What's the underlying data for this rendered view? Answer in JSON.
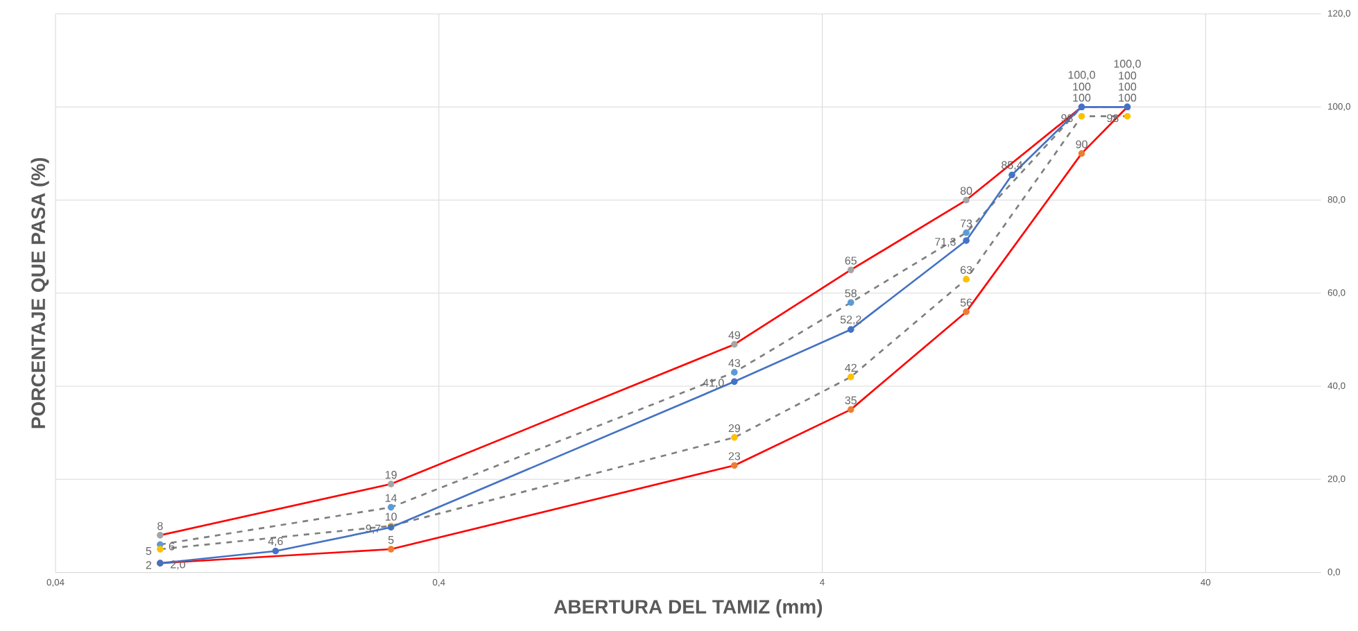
{
  "chart_data": {
    "type": "line",
    "xlabel": "ABERTURA DEL TAMIZ (mm)",
    "ylabel": "PORCENTAJE QUE PASA (%)",
    "log": "x",
    "grid": true,
    "marker": "circle",
    "xlim": [
      0.04,
      80
    ],
    "xticks": [
      {
        "value": 0.04,
        "label": "0,04"
      },
      {
        "value": 0.4,
        "label": "0,4"
      },
      4,
      40
    ],
    "ylim": [
      0,
      120
    ],
    "yticks": [
      {
        "value": 0,
        "label": "0,0"
      },
      {
        "value": 20,
        "label": "20,0"
      },
      {
        "value": 40,
        "label": "40,0"
      },
      {
        "value": 60,
        "label": "60,0"
      },
      {
        "value": 80,
        "label": "80,0"
      },
      {
        "value": 100,
        "label": "100,0"
      },
      {
        "value": 120,
        "label": "120,0"
      }
    ],
    "series": [
      {
        "color": "#ff0000",
        "line_style": "solid",
        "colors": [
          "#a5a5a5",
          "#a5a5a5",
          "#a5a5a5",
          "#a5a5a5",
          "#a5a5a5",
          "#a5a5a5",
          "#a5a5a5"
        ],
        "x": [
          0.075,
          0.3,
          2.36,
          4.75,
          9.5,
          19,
          25
        ],
        "values": [
          8,
          19,
          49,
          65,
          80,
          100,
          100
        ],
        "value_labels": [
          "8",
          "19",
          "49",
          "65",
          "80",
          "100",
          "100"
        ]
      },
      {
        "color": "#ff0000",
        "line_style": "solid",
        "colors": [
          "#ed7d31",
          "#ed7d31",
          "#ed7d31",
          "#ed7d31",
          "#ed7d31",
          "#ed7d31",
          "#ed7d31"
        ],
        "x": [
          0.075,
          0.3,
          2.36,
          4.75,
          9.5,
          19,
          25
        ],
        "values": [
          2,
          5,
          23,
          35,
          56,
          90,
          100
        ],
        "value_labels": [
          "2",
          "5",
          "23",
          "35",
          "56",
          "90",
          "100"
        ]
      },
      {
        "color": "#7f7f7f",
        "line_style": "dashed",
        "colors": [
          "#5b9bd5",
          "#5b9bd5",
          "#5b9bd5",
          "#5b9bd5",
          "#5b9bd5",
          "#5b9bd5",
          "#5b9bd5"
        ],
        "x": [
          0.075,
          0.3,
          2.36,
          4.75,
          9.5,
          19,
          25
        ],
        "values": [
          6,
          14,
          43,
          58,
          73,
          100,
          100
        ],
        "value_labels": [
          "6",
          "14",
          "43",
          "58",
          "73",
          "100",
          "100"
        ]
      },
      {
        "color": "#7f7f7f",
        "line_style": "dashed",
        "colors": [
          "#ffc000",
          "#ffc000",
          "#ffc000",
          "#ffc000",
          "#ffc000",
          "#ffc000",
          "#ffc000"
        ],
        "x": [
          0.075,
          0.3,
          2.36,
          4.75,
          9.5,
          19,
          25
        ],
        "values": [
          5,
          10,
          29,
          42,
          63,
          98,
          98
        ],
        "value_labels": [
          "5",
          "10",
          "29",
          "42",
          "63",
          "98",
          "98"
        ]
      },
      {
        "color": "#4472c4",
        "line_style": "solid",
        "colors": [
          "#4472c4",
          "#4472c4",
          "#4472c4",
          "#4472c4",
          "#4472c4",
          "#4472c4",
          "#4472c4",
          "#4472c4",
          "#4472c4"
        ],
        "x": [
          0.075,
          0.15,
          0.3,
          2.36,
          4.75,
          9.5,
          12.5,
          19,
          25
        ],
        "values": [
          2.0,
          4.6,
          9.7,
          41.0,
          52.2,
          71.3,
          85.4,
          100.0,
          100.0
        ],
        "value_labels": [
          "2,0",
          "4,6",
          "9,7",
          "41,0",
          "52,2",
          "71,3",
          "85,4",
          "100,0",
          "100,0"
        ]
      }
    ]
  }
}
